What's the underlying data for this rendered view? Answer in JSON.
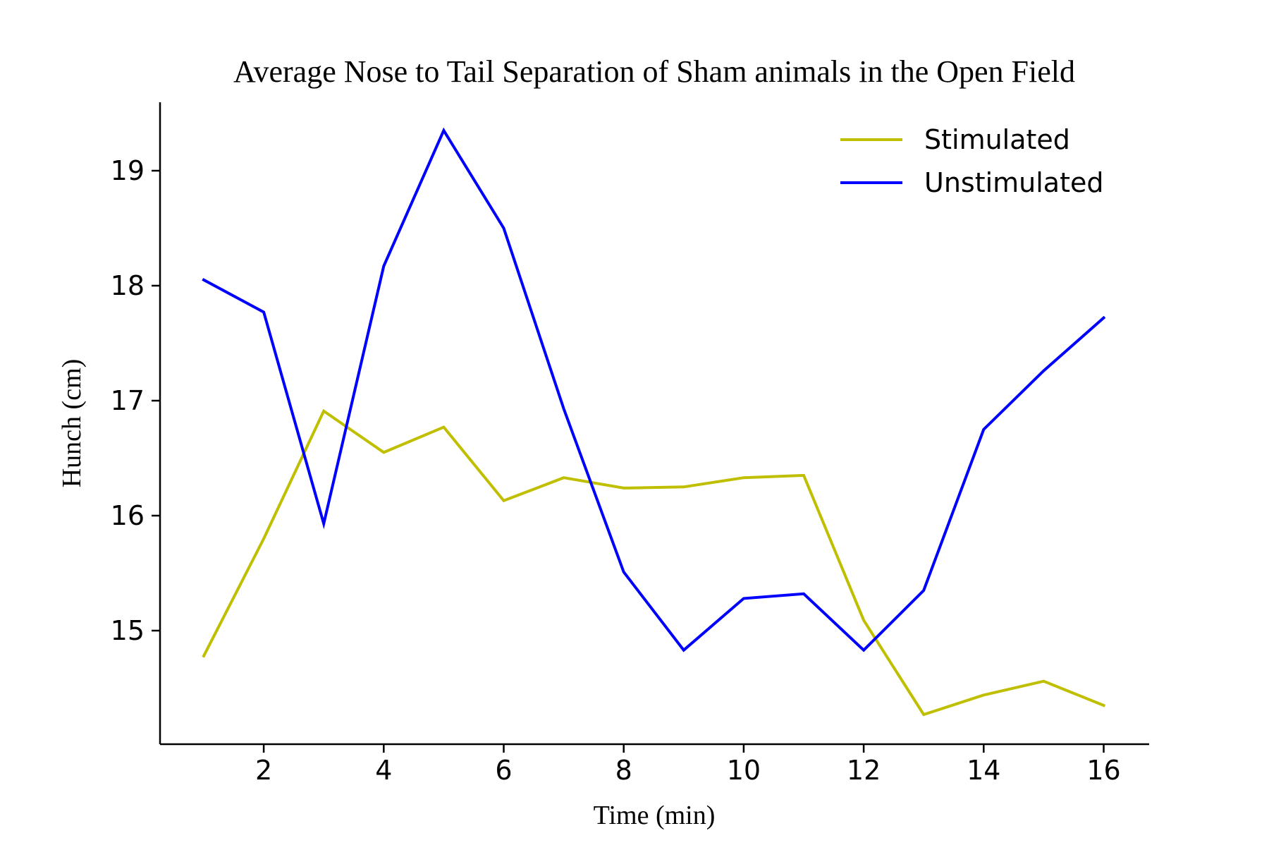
{
  "chart_data": {
    "type": "line",
    "title": "Average Nose to Tail Separation of Sham animals in the Open Field",
    "xlabel": "Time (min)",
    "ylabel": "Hunch (cm)",
    "x": [
      1,
      2,
      3,
      4,
      5,
      6,
      7,
      8,
      9,
      10,
      11,
      12,
      13,
      14,
      15,
      16
    ],
    "x_ticks": [
      "2",
      "4",
      "6",
      "8",
      "10",
      "12",
      "14",
      "16"
    ],
    "y_ticks": [
      "15",
      "16",
      "17",
      "18",
      "19"
    ],
    "xlim": [
      0.4,
      16.75
    ],
    "ylim": [
      14.03,
      19.6
    ],
    "grid": false,
    "legend_position": "top-right",
    "series": [
      {
        "name": "Stimulated",
        "color": "#bfbf00",
        "values": [
          14.78,
          15.8,
          16.91,
          16.55,
          16.77,
          16.13,
          16.33,
          16.24,
          16.25,
          16.33,
          16.35,
          15.09,
          14.27,
          14.44,
          14.56,
          14.35
        ]
      },
      {
        "name": "Unstimulated",
        "color": "#0000ff",
        "values": [
          18.05,
          17.77,
          15.93,
          18.17,
          19.35,
          18.5,
          16.93,
          15.51,
          14.83,
          15.28,
          15.32,
          14.83,
          15.35,
          16.75,
          17.26,
          17.72
        ]
      }
    ]
  }
}
